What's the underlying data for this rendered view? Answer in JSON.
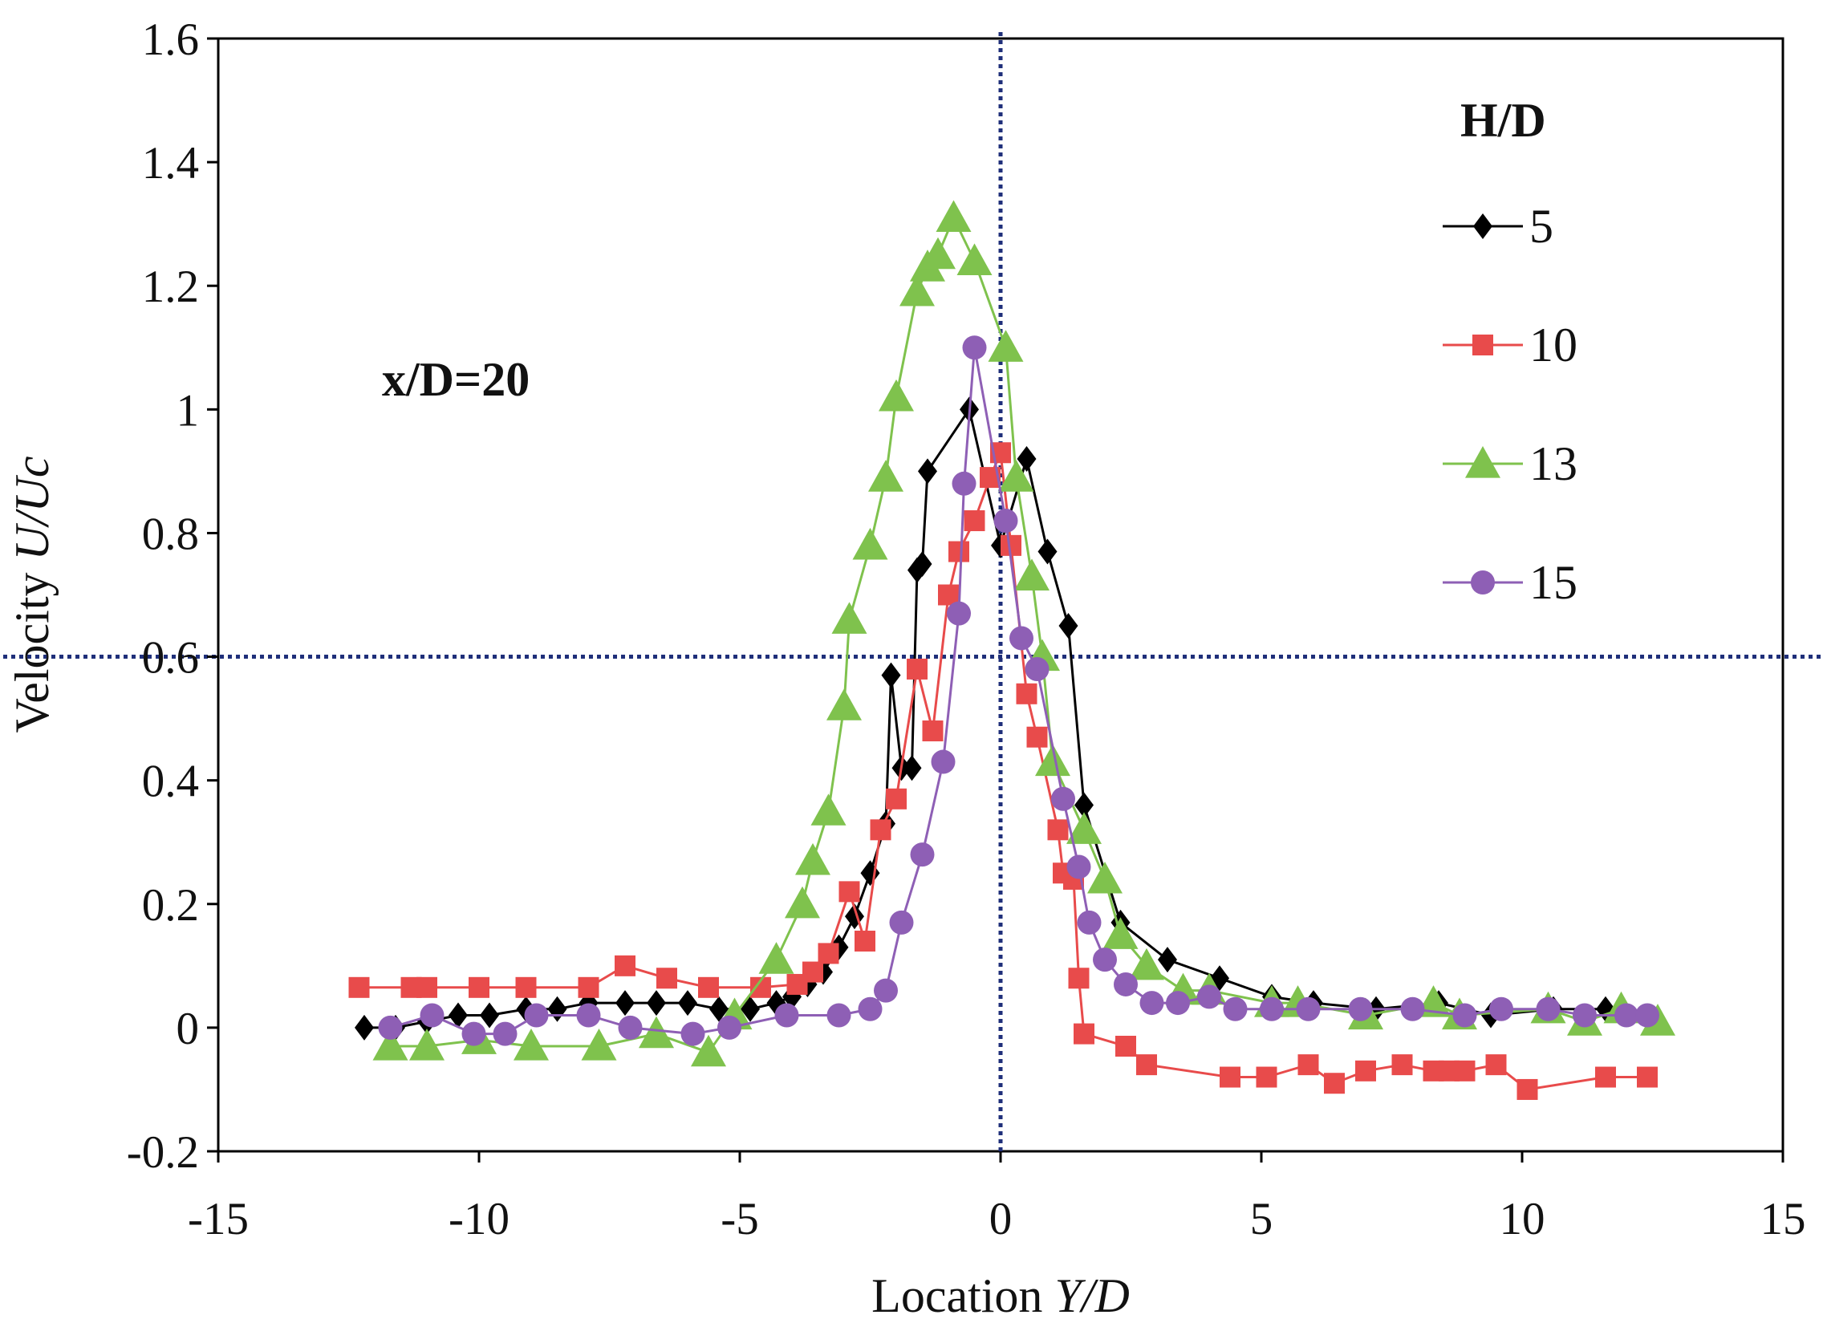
{
  "chart_data": {
    "type": "line",
    "title": "",
    "xlabel_prefix": "Location ",
    "xlabel_italic": "Y/D",
    "ylabel_prefix": "Velocity ",
    "ylabel_italic": "U/Uc",
    "xlim": [
      -15,
      15
    ],
    "ylim": [
      -0.2,
      1.6
    ],
    "xticks": [
      -15,
      -10,
      -5,
      0,
      5,
      10,
      15
    ],
    "yticks": [
      -0.2,
      0,
      0.2,
      0.4,
      0.6,
      0.8,
      1,
      1.2,
      1.4,
      1.6
    ],
    "ytick_labels": [
      "-0.2",
      "0",
      "0.2",
      "0.4",
      "0.6",
      "0.8",
      "1",
      "1.2",
      "1.4",
      "1.6"
    ],
    "xtick_labels": [
      "-15",
      "-10",
      "-5",
      "0",
      "5",
      "10",
      "15"
    ],
    "annotation": "x/D=20",
    "legend_title": "H/D",
    "legend_position": "top-right",
    "reference_lines": [
      {
        "orientation": "vertical",
        "value": 0,
        "color": "#1f2f7a",
        "style": "dotted"
      },
      {
        "orientation": "horizontal",
        "value": 0.6,
        "color": "#1f2f7a",
        "style": "dotted"
      }
    ],
    "series": [
      {
        "name": "5",
        "color": "#000000",
        "marker": "diamond",
        "x": [
          -12.2,
          -11.6,
          -11.0,
          -10.4,
          -9.8,
          -9.1,
          -8.5,
          -7.9,
          -7.2,
          -6.6,
          -6.0,
          -5.4,
          -4.8,
          -4.3,
          -4.0,
          -3.7,
          -3.4,
          -3.1,
          -2.8,
          -2.5,
          -2.2,
          -2.1,
          -1.9,
          -1.7,
          -1.6,
          -1.5,
          -1.4,
          -0.6,
          0.0,
          0.5,
          0.9,
          1.3,
          1.6,
          2.3,
          3.2,
          4.2,
          5.2,
          6.0,
          7.2,
          8.4,
          9.4,
          10.6,
          11.6
        ],
        "y": [
          0.0,
          0.0,
          0.01,
          0.02,
          0.02,
          0.03,
          0.03,
          0.04,
          0.04,
          0.04,
          0.04,
          0.03,
          0.03,
          0.04,
          0.05,
          0.07,
          0.09,
          0.13,
          0.18,
          0.25,
          0.33,
          0.57,
          0.42,
          0.42,
          0.74,
          0.75,
          0.9,
          1.0,
          0.78,
          0.92,
          0.77,
          0.65,
          0.36,
          0.17,
          0.11,
          0.08,
          0.05,
          0.04,
          0.03,
          0.04,
          0.02,
          0.03,
          0.03
        ]
      },
      {
        "name": "10",
        "color": "#e84b4b",
        "marker": "square",
        "x": [
          -12.3,
          -11.3,
          -11.0,
          -10.0,
          -9.1,
          -7.9,
          -7.2,
          -6.4,
          -5.6,
          -4.6,
          -3.9,
          -3.6,
          -3.3,
          -2.9,
          -2.6,
          -2.3,
          -2.0,
          -1.6,
          -1.3,
          -1.0,
          -0.8,
          -0.5,
          -0.2,
          0.0,
          0.2,
          0.5,
          0.7,
          1.1,
          1.2,
          1.4,
          1.5,
          1.6,
          2.4,
          2.8,
          4.4,
          5.1,
          5.9,
          6.4,
          7.0,
          7.7,
          8.3,
          8.6,
          8.9,
          9.5,
          10.1,
          11.6,
          12.4
        ],
        "y": [
          0.065,
          0.065,
          0.065,
          0.065,
          0.065,
          0.065,
          0.1,
          0.08,
          0.065,
          0.065,
          0.07,
          0.09,
          0.12,
          0.22,
          0.14,
          0.32,
          0.37,
          0.58,
          0.48,
          0.7,
          0.77,
          0.82,
          0.89,
          0.93,
          0.78,
          0.54,
          0.47,
          0.32,
          0.25,
          0.24,
          0.08,
          -0.01,
          -0.03,
          -0.06,
          -0.08,
          -0.08,
          -0.06,
          -0.09,
          -0.07,
          -0.06,
          -0.07,
          -0.07,
          -0.07,
          -0.06,
          -0.1,
          -0.08,
          -0.08
        ]
      },
      {
        "name": "13",
        "color": "#7fc24d",
        "marker": "triangle",
        "x": [
          -11.7,
          -11.0,
          -10.0,
          -9.0,
          -7.7,
          -6.6,
          -5.6,
          -5.1,
          -4.3,
          -3.8,
          -3.6,
          -3.3,
          -3.0,
          -2.9,
          -2.5,
          -2.2,
          -2.0,
          -1.6,
          -1.4,
          -1.2,
          -0.9,
          -0.5,
          0.1,
          0.3,
          0.6,
          0.8,
          1.0,
          1.6,
          2.0,
          2.3,
          2.8,
          3.5,
          4.0,
          5.2,
          5.7,
          7.0,
          8.3,
          8.8,
          10.5,
          11.2,
          11.9,
          12.6
        ],
        "y": [
          -0.03,
          -0.03,
          -0.02,
          -0.03,
          -0.03,
          -0.01,
          -0.04,
          0.02,
          0.11,
          0.2,
          0.27,
          0.35,
          0.52,
          0.66,
          0.78,
          0.89,
          1.02,
          1.19,
          1.23,
          1.25,
          1.31,
          1.24,
          1.1,
          0.89,
          0.73,
          0.6,
          0.43,
          0.32,
          0.24,
          0.15,
          0.1,
          0.06,
          0.06,
          0.04,
          0.04,
          0.02,
          0.04,
          0.02,
          0.03,
          0.01,
          0.03,
          0.01
        ]
      },
      {
        "name": "15",
        "color": "#8e5fb5",
        "marker": "circle",
        "x": [
          -11.7,
          -10.9,
          -10.1,
          -9.5,
          -8.9,
          -7.9,
          -7.1,
          -5.9,
          -5.2,
          -4.1,
          -3.1,
          -2.5,
          -2.2,
          -1.9,
          -1.5,
          -1.1,
          -0.8,
          -0.7,
          -0.5,
          0.1,
          0.4,
          0.7,
          1.2,
          1.5,
          1.7,
          2.0,
          2.4,
          2.9,
          3.4,
          4.0,
          4.5,
          5.2,
          5.9,
          6.9,
          7.9,
          8.9,
          9.6,
          10.5,
          11.2,
          12.0,
          12.4
        ],
        "y": [
          0.0,
          0.02,
          -0.01,
          -0.01,
          0.02,
          0.02,
          0.0,
          -0.01,
          0.0,
          0.02,
          0.02,
          0.03,
          0.06,
          0.17,
          0.28,
          0.43,
          0.67,
          0.88,
          1.1,
          0.82,
          0.63,
          0.58,
          0.37,
          0.26,
          0.17,
          0.11,
          0.07,
          0.04,
          0.04,
          0.05,
          0.03,
          0.03,
          0.03,
          0.03,
          0.03,
          0.02,
          0.03,
          0.03,
          0.02,
          0.02,
          0.02
        ]
      }
    ]
  }
}
